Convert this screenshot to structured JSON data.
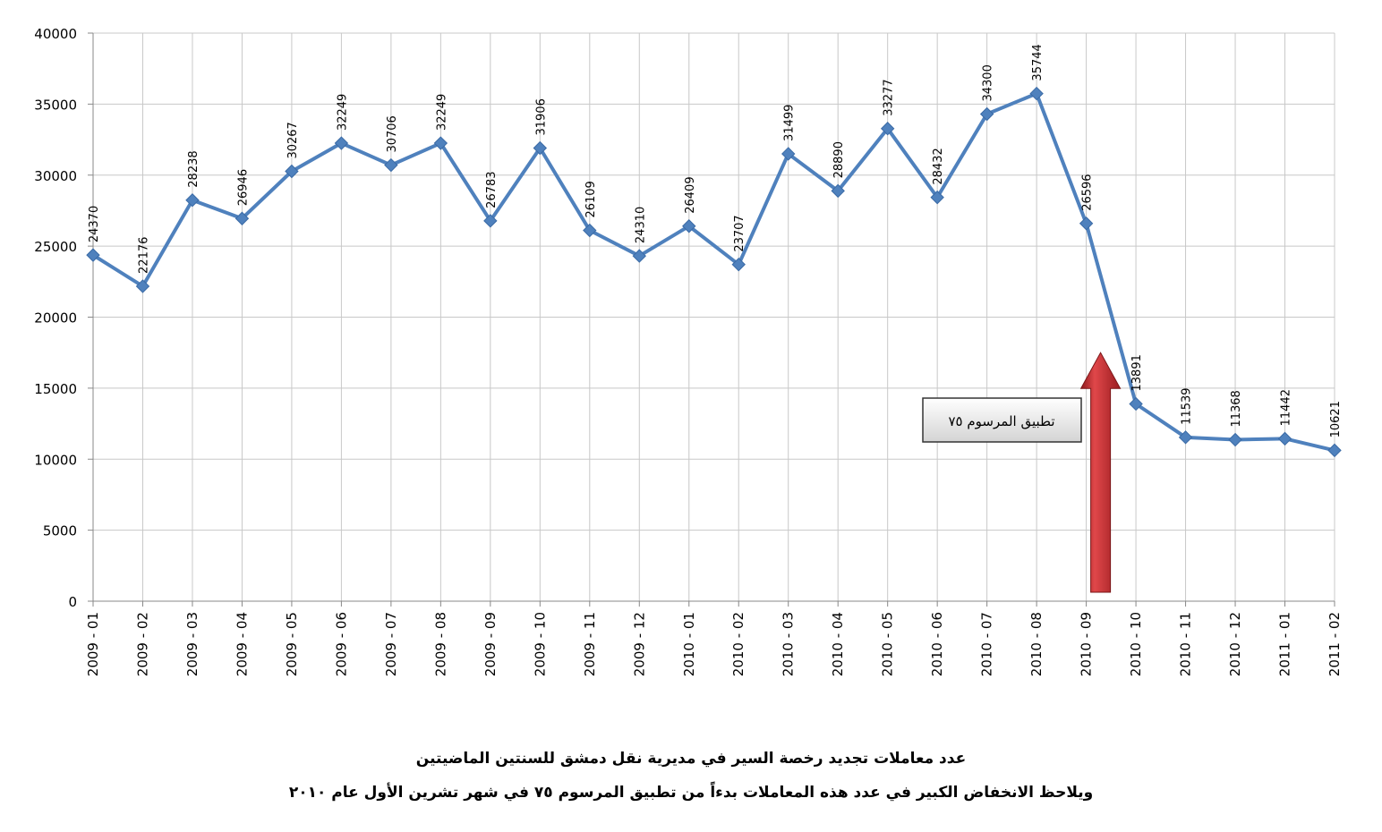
{
  "chart_data": {
    "type": "line",
    "categories": [
      "2009 - 01",
      "2009 - 02",
      "2009 - 03",
      "2009 - 04",
      "2009 - 05",
      "2009 - 06",
      "2009 - 07",
      "2009 - 08",
      "2009 - 09",
      "2009 - 10",
      "2009 - 11",
      "2009 - 12",
      "2010 - 01",
      "2010 - 02",
      "2010 - 03",
      "2010 - 04",
      "2010 - 05",
      "2010 - 06",
      "2010 - 07",
      "2010 - 08",
      "2010 - 09",
      "2010 - 10",
      "2010 - 11",
      "2010 - 12",
      "2011 - 01",
      "2011 - 02"
    ],
    "values": [
      24370,
      22176,
      28238,
      26946,
      30267,
      32249,
      30706,
      32249,
      26783,
      31906,
      26109,
      24310,
      26409,
      23707,
      31499,
      28890,
      33277,
      28432,
      34300,
      35744,
      26596,
      13891,
      11539,
      11368,
      11442,
      10621
    ],
    "data_labels": [
      "24370",
      "22176",
      "28238",
      "26946",
      "30267",
      "32249",
      "30706",
      "32249",
      "26783",
      "31906",
      "26109",
      "24310",
      "26409",
      "23707",
      "31499",
      "28890",
      "33277",
      "28432",
      "34300",
      "35744",
      "26596",
      "13891",
      "11539",
      "11368",
      "11442",
      "10621"
    ],
    "ylim": [
      0,
      40000
    ],
    "yticks": [
      0,
      5000,
      10000,
      15000,
      20000,
      25000,
      30000,
      35000,
      40000
    ],
    "ytick_labels": [
      "0",
      "5000",
      "10000",
      "15000",
      "20000",
      "25000",
      "30000",
      "35000",
      "40000"
    ],
    "grid": true,
    "line_color": "#4f81bd",
    "arrow_color": "#c0282b",
    "annotation": {
      "text": "تطبيق المرسوم ٧٥",
      "arrow_category": "2010 - 09",
      "arrow_tip_value": 17500
    },
    "title": "عدد معاملات تجديد رخصة السير في مديرية نقل دمشق للسنتين الماضيتين",
    "subtitle": "ويلاحظ الانخفاض الكبير في عدد هذه المعاملات بدءاً من تطبيق المرسوم ٧٥ في شهر تشرين الأول عام ٢٠١٠"
  }
}
